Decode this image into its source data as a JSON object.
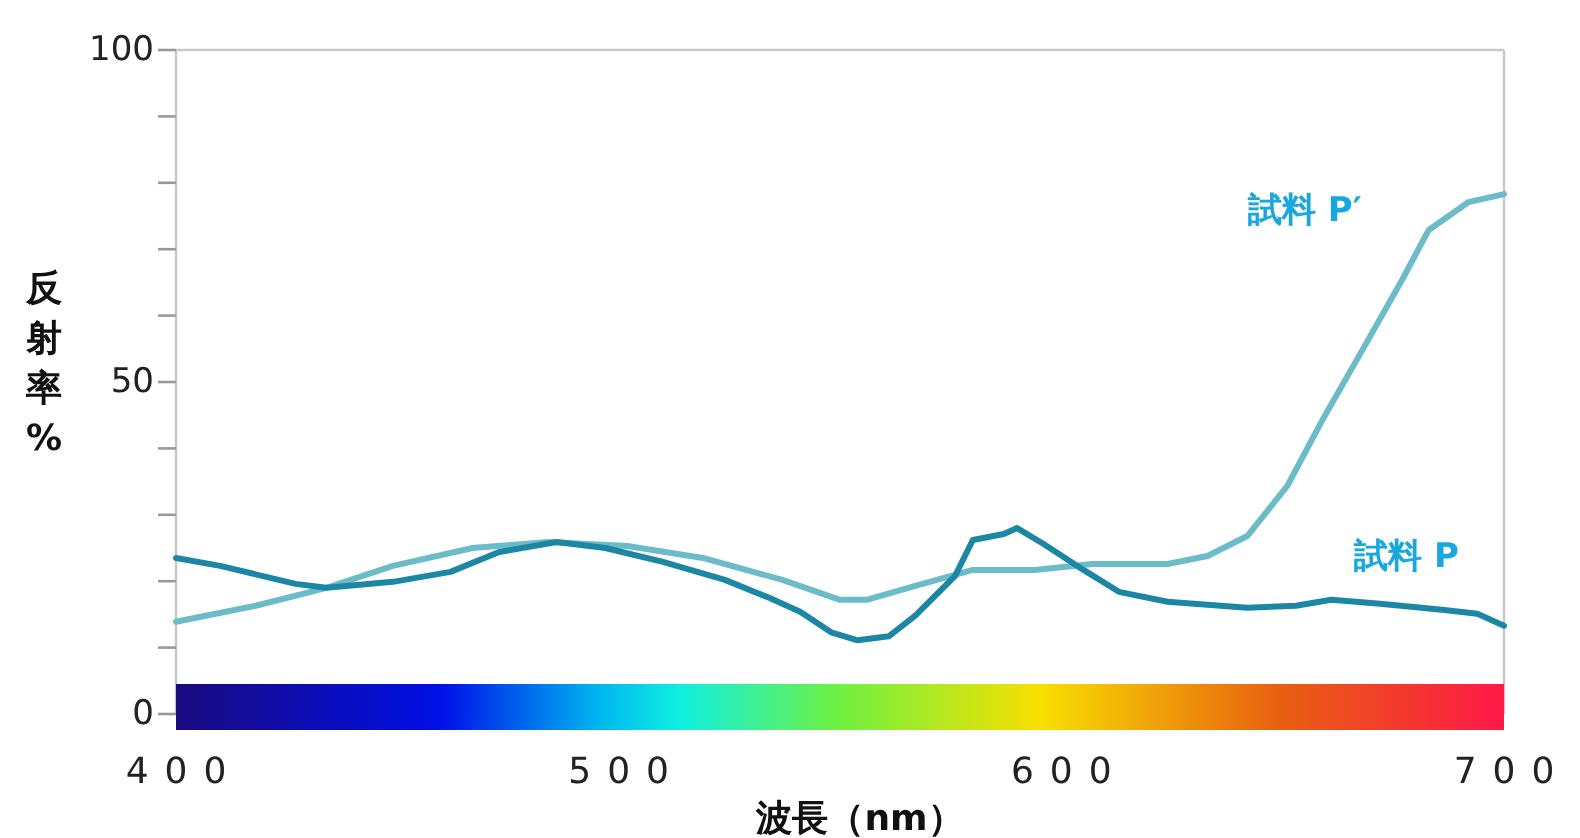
{
  "chart_data": {
    "type": "line",
    "xlabel": "波長（nm）",
    "ylabel": "反射率%",
    "xlim": [
      400,
      700
    ],
    "xticks": [
      400,
      500,
      600,
      700
    ],
    "ylim": [
      0,
      100
    ],
    "yticks": [
      0,
      {
        "value": 10,
        "label": null
      },
      {
        "value": 20,
        "label": null
      },
      {
        "value": 30,
        "label": null
      },
      {
        "value": 40,
        "label": null
      },
      50,
      {
        "value": 60,
        "label": null
      },
      {
        "value": 70,
        "label": null
      },
      {
        "value": 80,
        "label": null
      },
      {
        "value": 90,
        "label": null
      },
      100
    ],
    "marker": "none",
    "line_style": "solid",
    "series": [
      {
        "name": "試料 P′",
        "color": "#6bbcc8",
        "x": [
          400,
          418,
          434,
          449,
          467,
          484,
          502,
          519,
          537,
          550,
          556,
          567,
          580,
          594,
          607,
          624,
          633,
          642,
          651,
          659,
          668,
          677,
          683,
          692,
          700
        ],
        "values": [
          13.9,
          16.3,
          19.0,
          22.3,
          25.0,
          25.9,
          25.3,
          23.5,
          20.2,
          17.2,
          17.2,
          19.3,
          21.7,
          21.7,
          22.6,
          22.6,
          23.8,
          26.8,
          34.3,
          44.3,
          54.8,
          65.4,
          72.9,
          77.1,
          78.3
        ]
      },
      {
        "name": "試料 P",
        "color": "#1c87a5",
        "x": [
          400,
          410,
          427,
          434,
          449,
          462,
          473,
          486,
          497,
          510,
          524,
          534,
          541,
          548,
          554,
          561,
          567,
          576,
          580,
          587,
          590,
          596,
          605,
          613,
          624,
          642,
          653,
          661,
          672,
          686,
          694,
          700
        ],
        "values": [
          23.5,
          22.3,
          19.6,
          19.0,
          19.9,
          21.4,
          24.4,
          25.9,
          25.0,
          22.9,
          20.2,
          17.5,
          15.4,
          12.3,
          11.1,
          11.7,
          14.8,
          20.8,
          26.2,
          27.1,
          28.0,
          25.6,
          21.7,
          18.4,
          16.9,
          16.0,
          16.3,
          17.2,
          16.6,
          15.7,
          15.1,
          13.3
        ]
      }
    ]
  }
}
